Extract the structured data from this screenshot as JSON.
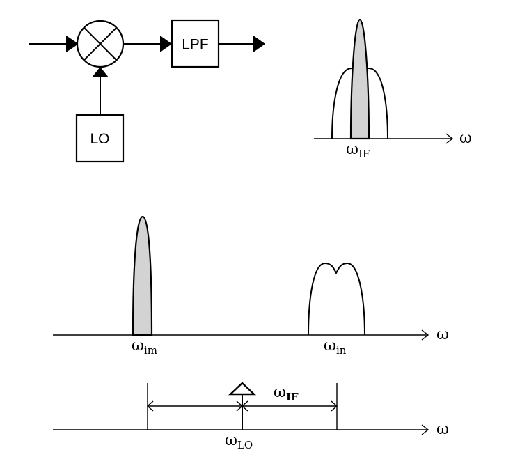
{
  "block_diagram": {
    "lpf_label": "LPF",
    "lo_label": "LO"
  },
  "if_spectrum": {
    "axis_label": "ω",
    "marker": {
      "symbol": "ω",
      "subscript": "IF"
    }
  },
  "rf_spectrum": {
    "axis_label": "ω",
    "image_marker": {
      "symbol": "ω",
      "subscript": "im"
    },
    "input_marker": {
      "symbol": "ω",
      "subscript": "in"
    }
  },
  "lo_spectrum": {
    "axis_label": "ω",
    "lo_marker": {
      "symbol": "ω",
      "subscript": "LO"
    },
    "spacing_marker": {
      "symbol": "ω",
      "subscript": "IF"
    }
  },
  "colors": {
    "ink": "#000000",
    "fill_gray": "#d3d3d3",
    "background": "#ffffff"
  }
}
